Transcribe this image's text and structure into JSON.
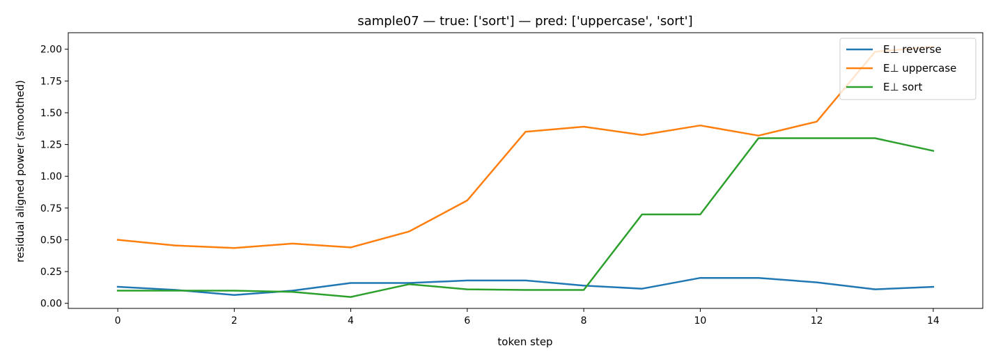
{
  "chart_data": {
    "type": "line",
    "title": "sample07 — true: ['sort'] — pred: ['uppercase', 'sort']",
    "xlabel": "token step",
    "ylabel": "residual aligned power (smoothed)",
    "xlim": [
      -0.85,
      14.85
    ],
    "ylim": [
      -0.04,
      2.13
    ],
    "xticks": [
      0,
      2,
      4,
      6,
      8,
      10,
      12,
      14
    ],
    "yticks": [
      0.0,
      0.25,
      0.5,
      0.75,
      1.0,
      1.25,
      1.5,
      1.75,
      2.0
    ],
    "ytick_labels": [
      "0.00",
      "0.25",
      "0.50",
      "0.75",
      "1.00",
      "1.25",
      "1.50",
      "1.75",
      "2.00"
    ],
    "grid": false,
    "legend_position": "top-right",
    "x": [
      0,
      1,
      2,
      3,
      4,
      5,
      6,
      7,
      8,
      9,
      10,
      11,
      12,
      13,
      14
    ],
    "series": [
      {
        "name": "E⊥ reverse",
        "color": "#1f77b4",
        "values": [
          0.13,
          0.105,
          0.065,
          0.1,
          0.16,
          0.16,
          0.18,
          0.18,
          0.14,
          0.115,
          0.2,
          0.2,
          0.165,
          0.11,
          0.13
        ]
      },
      {
        "name": "E⊥ uppercase",
        "color": "#ff7f0e",
        "values": [
          0.5,
          0.455,
          0.435,
          0.47,
          0.44,
          0.565,
          0.81,
          1.35,
          1.39,
          1.325,
          1.4,
          1.32,
          1.43,
          1.98,
          2.02
        ]
      },
      {
        "name": "E⊥ sort",
        "color": "#2ca02c",
        "values": [
          0.1,
          0.1,
          0.1,
          0.09,
          0.05,
          0.15,
          0.11,
          0.105,
          0.105,
          0.7,
          0.7,
          1.3,
          1.3,
          1.3,
          1.2
        ]
      }
    ]
  }
}
